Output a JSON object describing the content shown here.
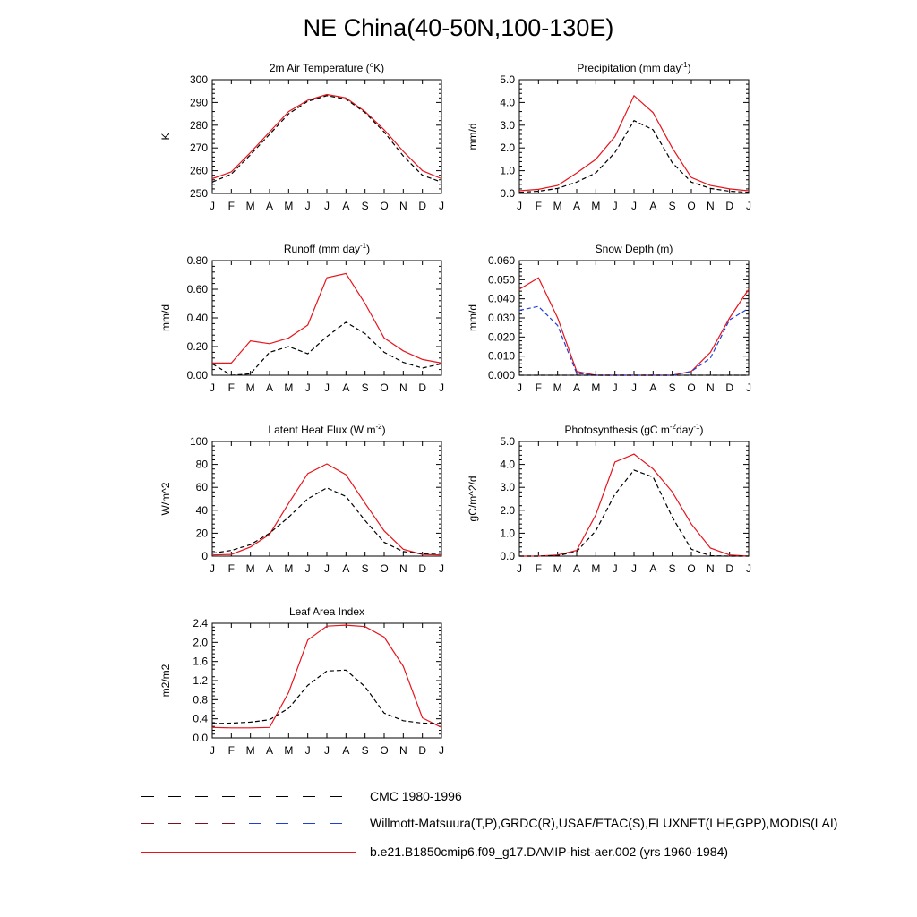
{
  "page_title": "NE China(40-50N,100-130E)",
  "colors": {
    "model": "#e8141c",
    "obs_primary": "#000000",
    "obs_alt": "#1f3fd6"
  },
  "legend": [
    {
      "label": "CMC 1980-1996",
      "style": "dashed",
      "colors": [
        "#000000"
      ]
    },
    {
      "label": "Willmott-Matsuura(T,P),GRDC(R),USAF/ETAC(S),FLUXNET(LHF,GPP),MODIS(LAI)",
      "style": "dashed",
      "colors": [
        "#7a1020",
        "#1f3fd6"
      ]
    },
    {
      "label": "b.e21.B1850cmip6.f09_g17.DAMIP-hist-aer.002 (yrs 1960-1984)",
      "style": "solid",
      "colors": [
        "#e8141c"
      ]
    }
  ],
  "chart_data": [
    {
      "type": "line",
      "title": "2m Air Temperature (",
      "title_sup": "o",
      "title_end": "K)",
      "ylabel": "K",
      "categories": [
        "J",
        "F",
        "M",
        "A",
        "M",
        "J",
        "J",
        "A",
        "S",
        "O",
        "N",
        "D",
        "J"
      ],
      "ylim": [
        250,
        300
      ],
      "yticks": [
        "250",
        "260",
        "270",
        "280",
        "290",
        "300"
      ],
      "series": [
        {
          "role": "model",
          "style": "solid",
          "color": "#e8141c",
          "values": [
            256.5,
            259.5,
            268,
            277,
            286,
            291,
            293.5,
            292,
            286,
            278,
            268.5,
            260,
            256.5
          ]
        },
        {
          "role": "obs",
          "style": "dashed",
          "color": "#000000",
          "values": [
            255,
            258.5,
            267,
            276,
            285,
            290.5,
            293,
            291.5,
            285.5,
            277,
            266.5,
            258,
            255
          ]
        }
      ]
    },
    {
      "type": "line",
      "title": "Precipitation (mm day",
      "title_sup": "-1",
      "title_end": ")",
      "ylabel": "mm/d",
      "categories": [
        "J",
        "F",
        "M",
        "A",
        "M",
        "J",
        "J",
        "A",
        "S",
        "O",
        "N",
        "D",
        "J"
      ],
      "ylim": [
        0,
        5
      ],
      "yticks": [
        "0.0",
        "1.0",
        "2.0",
        "3.0",
        "4.0",
        "5.0"
      ],
      "series": [
        {
          "role": "model",
          "style": "solid",
          "color": "#e8141c",
          "values": [
            0.12,
            0.18,
            0.35,
            0.9,
            1.5,
            2.5,
            4.3,
            3.55,
            2.0,
            0.7,
            0.35,
            0.2,
            0.12
          ]
        },
        {
          "role": "obs",
          "style": "dashed",
          "color": "#000000",
          "values": [
            0.05,
            0.1,
            0.22,
            0.5,
            0.9,
            1.8,
            3.2,
            2.8,
            1.35,
            0.5,
            0.22,
            0.1,
            0.05
          ]
        }
      ]
    },
    {
      "type": "line",
      "title": "Runoff (mm day",
      "title_sup": "-1",
      "title_end": ")",
      "ylabel": "mm/d",
      "categories": [
        "J",
        "F",
        "M",
        "A",
        "M",
        "J",
        "J",
        "A",
        "S",
        "O",
        "N",
        "D",
        "J"
      ],
      "ylim": [
        0,
        0.8
      ],
      "yticks": [
        "0.00",
        "0.20",
        "0.40",
        "0.60",
        "0.80"
      ],
      "series": [
        {
          "role": "model",
          "style": "solid",
          "color": "#e8141c",
          "values": [
            0.085,
            0.085,
            0.24,
            0.22,
            0.26,
            0.35,
            0.68,
            0.71,
            0.5,
            0.26,
            0.17,
            0.11,
            0.085
          ]
        },
        {
          "role": "obs",
          "style": "dashed",
          "color": "#000000",
          "values": [
            0.08,
            0.0,
            0.01,
            0.16,
            0.2,
            0.15,
            0.27,
            0.37,
            0.29,
            0.16,
            0.09,
            0.05,
            0.08
          ]
        }
      ]
    },
    {
      "type": "line",
      "title": "Snow Depth (m)",
      "title_sup": "",
      "title_end": "",
      "ylabel": "mm/d",
      "categories": [
        "J",
        "F",
        "M",
        "A",
        "M",
        "J",
        "J",
        "A",
        "S",
        "O",
        "N",
        "D",
        "J"
      ],
      "ylim": [
        0,
        0.06
      ],
      "yticks": [
        "0.000",
        "0.010",
        "0.020",
        "0.030",
        "0.040",
        "0.050",
        "0.060"
      ],
      "series": [
        {
          "role": "model",
          "style": "solid",
          "color": "#e8141c",
          "values": [
            0.045,
            0.051,
            0.03,
            0.002,
            0.0,
            0.0,
            0.0,
            0.0,
            0.0,
            0.002,
            0.012,
            0.03,
            0.045
          ]
        },
        {
          "role": "obs_alt",
          "style": "dashed",
          "color": "#1f3fd6",
          "values": [
            0.034,
            0.036,
            0.026,
            0.001,
            0.0,
            0.0,
            0.0,
            0.0,
            0.0,
            0.002,
            0.009,
            0.029,
            0.035
          ]
        },
        {
          "role": "obs",
          "style": "dashed",
          "color": "#000000",
          "values": [
            0,
            0,
            0,
            0,
            0,
            0,
            0,
            0,
            0,
            0,
            0,
            0,
            0
          ]
        }
      ]
    },
    {
      "type": "line",
      "title": "Latent Heat Flux (W m",
      "title_sup": "-2",
      "title_end": ")",
      "ylabel": "W/m^2",
      "categories": [
        "J",
        "F",
        "M",
        "A",
        "M",
        "J",
        "J",
        "A",
        "S",
        "O",
        "N",
        "D",
        "J"
      ],
      "ylim": [
        0,
        100
      ],
      "yticks": [
        "0",
        "20",
        "40",
        "60",
        "80",
        "100"
      ],
      "series": [
        {
          "role": "model",
          "style": "solid",
          "color": "#e8141c",
          "values": [
            1,
            1.5,
            8,
            19,
            46,
            72,
            80.5,
            71,
            46,
            22,
            6,
            1.5,
            1
          ]
        },
        {
          "role": "obs",
          "style": "dashed",
          "color": "#000000",
          "values": [
            2.5,
            5,
            10,
            20,
            34,
            50,
            59.5,
            52,
            31,
            12,
            4,
            2,
            2.5
          ]
        }
      ]
    },
    {
      "type": "line",
      "title": "Photosynthesis (gC m",
      "title_sup": "-2",
      "title_mid": "day",
      "title_sup2": "-1",
      "title_end": ")",
      "ylabel": "gC/m^2/d",
      "categories": [
        "J",
        "F",
        "M",
        "A",
        "M",
        "J",
        "J",
        "A",
        "S",
        "O",
        "N",
        "D",
        "J"
      ],
      "ylim": [
        0,
        5
      ],
      "yticks": [
        "0.0",
        "1.0",
        "2.0",
        "3.0",
        "4.0",
        "5.0"
      ],
      "series": [
        {
          "role": "model",
          "style": "solid",
          "color": "#e8141c",
          "values": [
            0.0,
            0.0,
            0.05,
            0.25,
            1.8,
            4.1,
            4.45,
            3.8,
            2.8,
            1.4,
            0.35,
            0.05,
            0.0
          ]
        },
        {
          "role": "obs",
          "style": "dashed",
          "color": "#000000",
          "values": [
            0.0,
            0.0,
            0.02,
            0.2,
            1.1,
            2.7,
            3.75,
            3.45,
            1.7,
            0.3,
            0.02,
            0.0,
            0.0
          ]
        }
      ]
    },
    {
      "type": "line",
      "title": "Leaf Area Index",
      "title_sup": "",
      "title_end": "",
      "ylabel": "m2/m2",
      "categories": [
        "J",
        "F",
        "M",
        "A",
        "M",
        "J",
        "J",
        "A",
        "S",
        "O",
        "N",
        "D",
        "J"
      ],
      "ylim": [
        0,
        2.4
      ],
      "yticks": [
        "0.0",
        "0.4",
        "0.8",
        "1.2",
        "1.6",
        "2.0",
        "2.4"
      ],
      "series": [
        {
          "role": "model",
          "style": "solid",
          "color": "#e8141c",
          "values": [
            0.22,
            0.21,
            0.21,
            0.22,
            0.95,
            2.05,
            2.34,
            2.36,
            2.33,
            2.11,
            1.5,
            0.42,
            0.22
          ]
        },
        {
          "role": "obs",
          "style": "dashed",
          "color": "#000000",
          "values": [
            0.3,
            0.31,
            0.33,
            0.38,
            0.62,
            1.1,
            1.4,
            1.42,
            1.07,
            0.52,
            0.36,
            0.31,
            0.3
          ]
        }
      ]
    }
  ]
}
